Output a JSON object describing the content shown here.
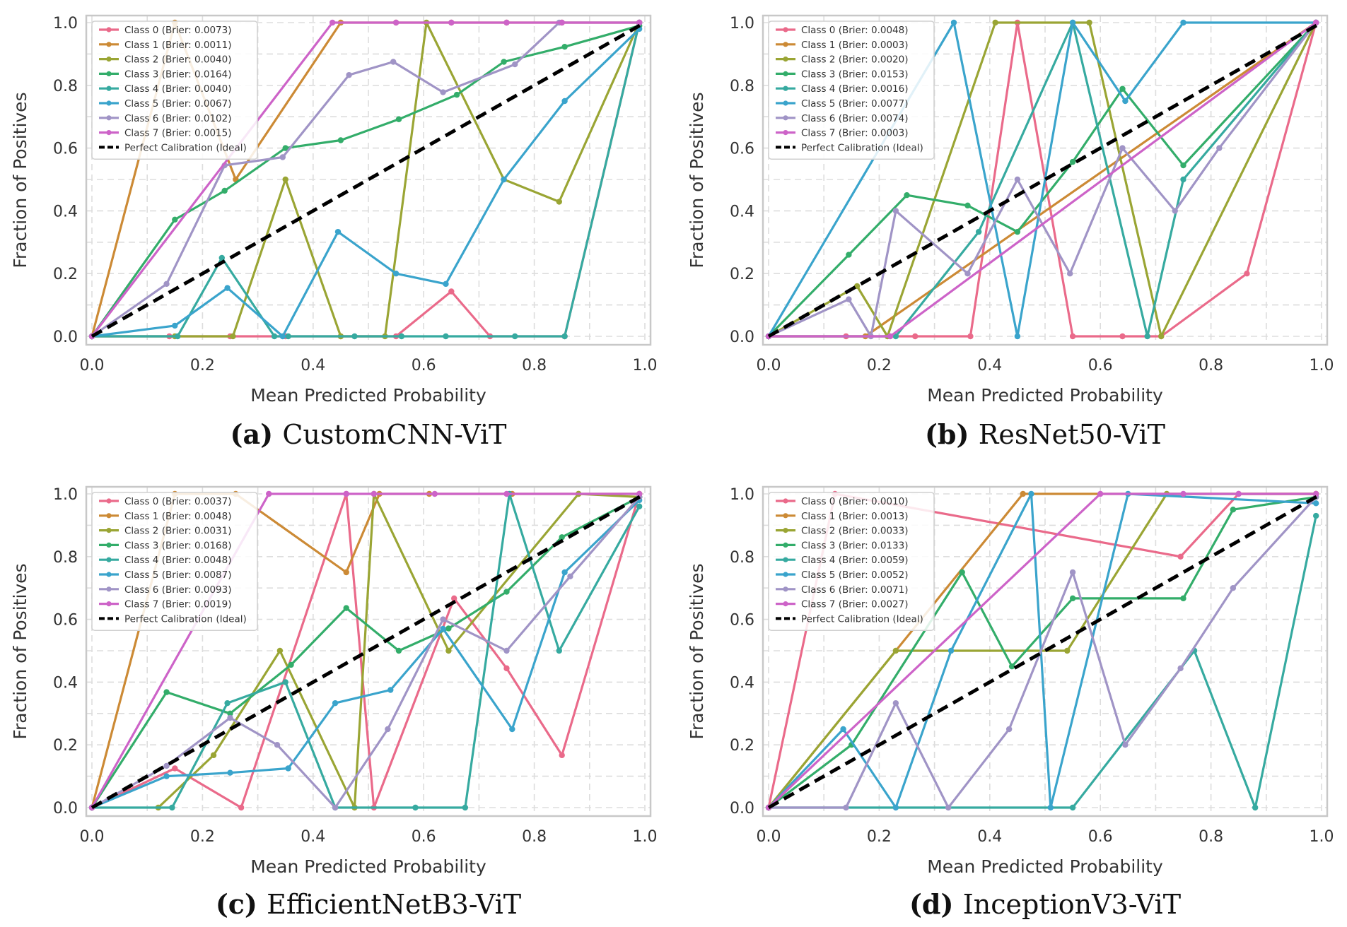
{
  "figure": {
    "colors": {
      "c0": "#ea6a8a",
      "c1": "#cc8a35",
      "c2": "#9aa534",
      "c3": "#33ad6a",
      "c4": "#36aaa0",
      "c5": "#3aa4cc",
      "c6": "#a094c6",
      "c7": "#cd63c8",
      "ideal": "#000000"
    }
  },
  "chart_data": [
    {
      "type": "line",
      "caption_label": "(a)",
      "caption_text": "CustomCNN-ViT",
      "xlabel": "Mean Predicted Probability",
      "ylabel": "Fraction of Positives",
      "xlim": [
        0,
        1
      ],
      "ylim": [
        0,
        1
      ],
      "xticks": [
        "0.0",
        "0.2",
        "0.4",
        "0.6",
        "0.8",
        "1.0"
      ],
      "yticks": [
        "0.0",
        "0.2",
        "0.4",
        "0.6",
        "0.8",
        "1.0"
      ],
      "grid": true,
      "legend_position": "top-left",
      "series": [
        {
          "name": "Class 0 (Brier: 0.0073)",
          "x": [
            0.0,
            0.14,
            0.25,
            0.35,
            0.45,
            0.55,
            0.65,
            0.72,
            0.855,
            0.99
          ],
          "y": [
            0.0,
            0.0,
            0.0,
            0.0,
            0.0,
            0.0,
            0.143,
            0.0,
            0.0,
            1.0
          ]
        },
        {
          "name": "Class 1 (Brier: 0.0011)",
          "x": [
            0.0,
            0.15,
            0.26,
            0.45,
            0.55,
            0.65,
            0.75,
            0.85,
            0.99
          ],
          "y": [
            0.0,
            1.0,
            0.5,
            1.0,
            1.0,
            1.0,
            1.0,
            1.0,
            1.0
          ]
        },
        {
          "name": "Class 2 (Brier: 0.0040)",
          "x": [
            0.0,
            0.15,
            0.255,
            0.35,
            0.45,
            0.53,
            0.605,
            0.745,
            0.845,
            0.99
          ],
          "y": [
            0.0,
            0.0,
            0.0,
            0.5,
            0.0,
            0.0,
            1.0,
            0.5,
            0.429,
            1.0
          ]
        },
        {
          "name": "Class 3 (Brier: 0.0164)",
          "x": [
            0.0,
            0.15,
            0.24,
            0.35,
            0.45,
            0.555,
            0.66,
            0.745,
            0.855,
            0.99
          ],
          "y": [
            0.0,
            0.372,
            0.464,
            0.6,
            0.625,
            0.692,
            0.77,
            0.875,
            0.923,
            0.99
          ]
        },
        {
          "name": "Class 4 (Brier: 0.0040)",
          "x": [
            0.0,
            0.155,
            0.235,
            0.33,
            0.355,
            0.475,
            0.56,
            0.64,
            0.765,
            0.855,
            0.99
          ],
          "y": [
            0.0,
            0.0,
            0.25,
            0.0,
            0.0,
            0.0,
            0.0,
            0.0,
            0.0,
            0.0,
            1.0
          ]
        },
        {
          "name": "Class 5 (Brier: 0.0067)",
          "x": [
            0.0,
            0.15,
            0.245,
            0.345,
            0.445,
            0.55,
            0.64,
            0.745,
            0.855,
            0.99
          ],
          "y": [
            0.0,
            0.034,
            0.154,
            0.0,
            0.333,
            0.2,
            0.167,
            0.5,
            0.75,
            0.98
          ]
        },
        {
          "name": "Class 6 (Brier: 0.0102)",
          "x": [
            0.0,
            0.135,
            0.24,
            0.345,
            0.465,
            0.545,
            0.635,
            0.765,
            0.845,
            0.99
          ],
          "y": [
            0.0,
            0.167,
            0.545,
            0.571,
            0.833,
            0.875,
            0.778,
            0.867,
            1.0,
            1.0
          ]
        },
        {
          "name": "Class 7 (Brier: 0.0015)",
          "x": [
            0.0,
            0.435,
            0.55,
            0.65,
            0.75,
            0.85,
            0.99
          ],
          "y": [
            0.0,
            1.0,
            1.0,
            1.0,
            1.0,
            1.0,
            1.0
          ]
        },
        {
          "name": "Perfect Calibration (Ideal)",
          "x": [
            0,
            1
          ],
          "y": [
            0,
            1
          ],
          "dashed": true
        }
      ]
    },
    {
      "type": "line",
      "caption_label": "(b)",
      "caption_text": "ResNet50-ViT",
      "xlabel": "Mean Predicted Probability",
      "ylabel": "Fraction of Positives",
      "xlim": [
        0,
        1
      ],
      "ylim": [
        0,
        1
      ],
      "xticks": [
        "0.0",
        "0.2",
        "0.4",
        "0.6",
        "0.8",
        "1.0"
      ],
      "yticks": [
        "0.0",
        "0.2",
        "0.4",
        "0.6",
        "0.8",
        "1.0"
      ],
      "grid": true,
      "legend_position": "top-left",
      "series": [
        {
          "name": "Class 0 (Brier: 0.0048)",
          "x": [
            0.0,
            0.14,
            0.265,
            0.365,
            0.45,
            0.55,
            0.64,
            0.71,
            0.865,
            0.99
          ],
          "y": [
            0.0,
            0.0,
            0.0,
            0.0,
            1.0,
            0.0,
            0.0,
            0.0,
            0.2,
            1.0
          ]
        },
        {
          "name": "Class 1 (Brier: 0.0003)",
          "x": [
            0.0,
            0.175,
            0.99
          ],
          "y": [
            0.0,
            0.0,
            1.0
          ]
        },
        {
          "name": "Class 2 (Brier: 0.0020)",
          "x": [
            0.0,
            0.16,
            0.215,
            0.41,
            0.58,
            0.71,
            0.99
          ],
          "y": [
            0.0,
            0.16,
            0.0,
            1.0,
            1.0,
            0.0,
            1.0
          ]
        },
        {
          "name": "Class 3 (Brier: 0.0153)",
          "x": [
            0.0,
            0.145,
            0.25,
            0.36,
            0.45,
            0.55,
            0.64,
            0.75,
            0.99
          ],
          "y": [
            0.0,
            0.26,
            0.45,
            0.417,
            0.333,
            0.556,
            0.789,
            0.545,
            1.0
          ]
        },
        {
          "name": "Class 4 (Brier: 0.0016)",
          "x": [
            0.0,
            0.23,
            0.38,
            0.55,
            0.685,
            0.75,
            0.99
          ],
          "y": [
            0.0,
            0.0,
            0.333,
            1.0,
            0.0,
            0.5,
            1.0
          ]
        },
        {
          "name": "Class 5 (Brier: 0.0077)",
          "x": [
            0.0,
            0.335,
            0.45,
            0.55,
            0.645,
            0.75,
            0.99
          ],
          "y": [
            0.0,
            1.0,
            0.0,
            1.0,
            0.75,
            1.0,
            1.0
          ]
        },
        {
          "name": "Class 6 (Brier: 0.0074)",
          "x": [
            0.0,
            0.145,
            0.185,
            0.23,
            0.36,
            0.45,
            0.545,
            0.64,
            0.735,
            0.815,
            0.99
          ],
          "y": [
            0.0,
            0.118,
            0.0,
            0.4,
            0.2,
            0.5,
            0.2,
            0.6,
            0.4,
            0.6,
            1.0
          ]
        },
        {
          "name": "Class 7 (Brier: 0.0003)",
          "x": [
            0.0,
            0.22,
            0.99
          ],
          "y": [
            0.0,
            0.0,
            1.0
          ]
        },
        {
          "name": "Perfect Calibration (Ideal)",
          "x": [
            0,
            1
          ],
          "y": [
            0,
            1
          ],
          "dashed": true
        }
      ]
    },
    {
      "type": "line",
      "caption_label": "(c)",
      "caption_text": "EfficientNetB3-ViT",
      "xlabel": "Mean Predicted Probability",
      "ylabel": "Fraction of Positives",
      "xlim": [
        0,
        1
      ],
      "ylim": [
        0,
        1
      ],
      "xticks": [
        "0.0",
        "0.2",
        "0.4",
        "0.6",
        "0.8",
        "1.0"
      ],
      "yticks": [
        "0.0",
        "0.2",
        "0.4",
        "0.6",
        "0.8",
        "1.0"
      ],
      "grid": true,
      "legend_position": "top-left",
      "series": [
        {
          "name": "Class 0 (Brier: 0.0037)",
          "x": [
            0.0,
            0.15,
            0.27,
            0.46,
            0.51,
            0.655,
            0.75,
            0.85,
            0.99
          ],
          "y": [
            0.0,
            0.125,
            0.0,
            1.0,
            0.0,
            0.667,
            0.444,
            0.167,
            1.0
          ]
        },
        {
          "name": "Class 1 (Brier: 0.0048)",
          "x": [
            0.0,
            0.15,
            0.26,
            0.46,
            0.52,
            0.61,
            0.76,
            0.88,
            0.99
          ],
          "y": [
            0.0,
            1.0,
            1.0,
            0.75,
            1.0,
            1.0,
            1.0,
            1.0,
            1.0
          ]
        },
        {
          "name": "Class 2 (Brier: 0.0031)",
          "x": [
            0.12,
            0.22,
            0.34,
            0.475,
            0.51,
            0.645,
            0.88,
            0.99
          ],
          "y": [
            0.0,
            0.167,
            0.5,
            0.0,
            1.0,
            0.5,
            1.0,
            0.99
          ]
        },
        {
          "name": "Class 3 (Brier: 0.0168)",
          "x": [
            0.0,
            0.135,
            0.25,
            0.36,
            0.46,
            0.555,
            0.645,
            0.75,
            0.85,
            0.99
          ],
          "y": [
            0.0,
            0.368,
            0.3,
            0.455,
            0.636,
            0.5,
            0.571,
            0.688,
            0.862,
            0.99
          ]
        },
        {
          "name": "Class 4 (Brier: 0.0048)",
          "x": [
            0.0,
            0.145,
            0.245,
            0.35,
            0.44,
            0.585,
            0.675,
            0.755,
            0.845,
            0.99
          ],
          "y": [
            0.0,
            0.0,
            0.333,
            0.4,
            0.0,
            0.0,
            0.0,
            1.0,
            0.5,
            0.96
          ]
        },
        {
          "name": "Class 5 (Brier: 0.0087)",
          "x": [
            0.0,
            0.135,
            0.25,
            0.355,
            0.44,
            0.54,
            0.635,
            0.76,
            0.855,
            0.99
          ],
          "y": [
            0.0,
            0.1,
            0.111,
            0.125,
            0.333,
            0.375,
            0.57,
            0.25,
            0.75,
            0.98
          ]
        },
        {
          "name": "Class 6 (Brier: 0.0093)",
          "x": [
            0.0,
            0.135,
            0.25,
            0.335,
            0.44,
            0.535,
            0.635,
            0.75,
            0.865,
            0.99
          ],
          "y": [
            0.0,
            0.133,
            0.286,
            0.2,
            0.0,
            0.25,
            0.6,
            0.5,
            0.737,
            0.99
          ]
        },
        {
          "name": "Class 7 (Brier: 0.0019)",
          "x": [
            0.0,
            0.32,
            0.46,
            0.51,
            0.62,
            0.75,
            0.99
          ],
          "y": [
            0.0,
            1.0,
            1.0,
            1.0,
            1.0,
            1.0,
            1.0
          ]
        },
        {
          "name": "Perfect Calibration (Ideal)",
          "x": [
            0,
            1
          ],
          "y": [
            0,
            1
          ],
          "dashed": true
        }
      ]
    },
    {
      "type": "line",
      "caption_label": "(d)",
      "caption_text": "InceptionV3-ViT",
      "xlabel": "Mean Predicted Probability",
      "ylabel": "Fraction of Positives",
      "xlim": [
        0,
        1
      ],
      "ylim": [
        0,
        1
      ],
      "xticks": [
        "0.0",
        "0.2",
        "0.4",
        "0.6",
        "0.8",
        "1.0"
      ],
      "yticks": [
        "0.0",
        "0.2",
        "0.4",
        "0.6",
        "0.8",
        "1.0"
      ],
      "grid": true,
      "legend_position": "top-left",
      "series": [
        {
          "name": "Class 0 (Brier: 0.0010)",
          "x": [
            0.0,
            0.12,
            0.745,
            0.85,
            0.99
          ],
          "y": [
            0.0,
            1.0,
            0.8,
            1.0,
            1.0
          ]
        },
        {
          "name": "Class 1 (Brier: 0.0013)",
          "x": [
            0.0,
            0.46,
            0.99
          ],
          "y": [
            0.0,
            1.0,
            1.0
          ]
        },
        {
          "name": "Class 2 (Brier: 0.0033)",
          "x": [
            0.0,
            0.23,
            0.54,
            0.72,
            0.99
          ],
          "y": [
            0.0,
            0.5,
            0.5,
            1.0,
            1.0
          ]
        },
        {
          "name": "Class 3 (Brier: 0.0133)",
          "x": [
            0.0,
            0.15,
            0.35,
            0.44,
            0.55,
            0.75,
            0.84,
            0.99
          ],
          "y": [
            0.0,
            0.2,
            0.75,
            0.45,
            0.667,
            0.667,
            0.95,
            0.99
          ]
        },
        {
          "name": "Class 4 (Brier: 0.0059)",
          "x": [
            0.0,
            0.55,
            0.77,
            0.88,
            0.99
          ],
          "y": [
            0.0,
            0.0,
            0.5,
            0.0,
            0.93
          ]
        },
        {
          "name": "Class 5 (Brier: 0.0052)",
          "x": [
            0.0,
            0.135,
            0.23,
            0.33,
            0.475,
            0.51,
            0.65,
            0.99
          ],
          "y": [
            0.0,
            0.25,
            0.0,
            0.5,
            1.0,
            0.0,
            1.0,
            0.97
          ]
        },
        {
          "name": "Class 6 (Brier: 0.0071)",
          "x": [
            0.0,
            0.14,
            0.23,
            0.325,
            0.435,
            0.55,
            0.645,
            0.745,
            0.84,
            0.99
          ],
          "y": [
            0.0,
            0.0,
            0.333,
            0.0,
            0.25,
            0.75,
            0.2,
            0.444,
            0.7,
            0.99
          ]
        },
        {
          "name": "Class 7 (Brier: 0.0027)",
          "x": [
            0.0,
            0.6,
            0.75,
            0.85,
            0.99
          ],
          "y": [
            0.0,
            1.0,
            1.0,
            1.0,
            1.0
          ]
        },
        {
          "name": "Perfect Calibration (Ideal)",
          "x": [
            0,
            1
          ],
          "y": [
            0,
            1
          ],
          "dashed": true
        }
      ]
    }
  ]
}
